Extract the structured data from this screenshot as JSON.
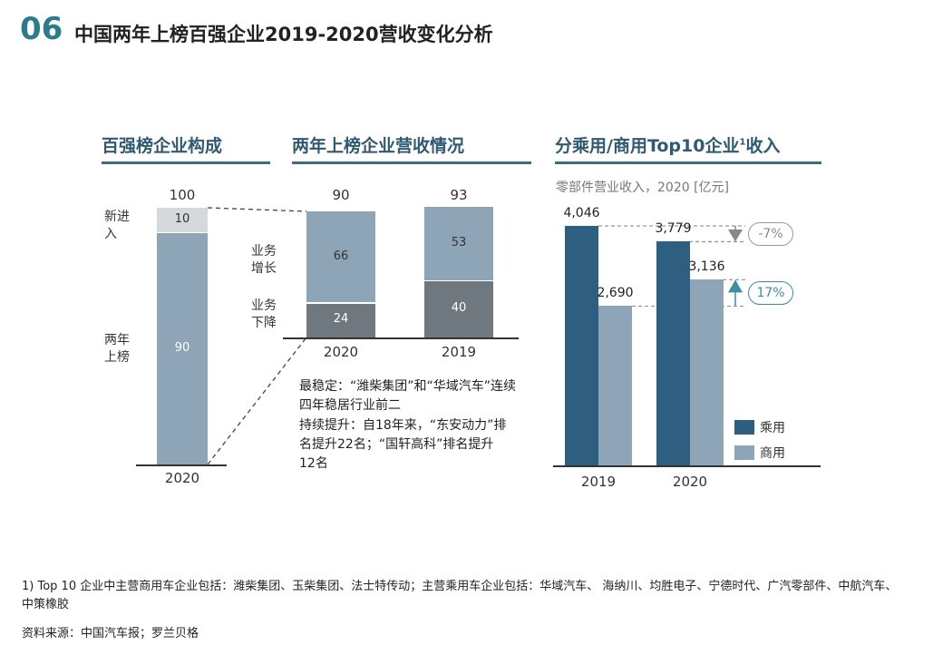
{
  "header": {
    "number": "06",
    "title": "中国两年上榜百强企业2019-2020营收变化分析"
  },
  "colors": {
    "dark_blue": "#2f5f80",
    "light_blue": "#8ea5b7",
    "gray": "#6e787e",
    "light_gray": "#d6d9db",
    "teal": "#3a8fa0"
  },
  "chart_data": [
    {
      "type": "bar",
      "title": "百强榜企业构成",
      "categories": [
        "2020"
      ],
      "series": [
        {
          "name": "两年上榜",
          "values": [
            90
          ]
        },
        {
          "name": "新进入",
          "values": [
            10
          ]
        }
      ],
      "total_labels": [
        "100"
      ],
      "segment_labels": [
        "两年上榜",
        "新进入"
      ],
      "ylim": [
        0,
        100
      ]
    },
    {
      "type": "bar",
      "title": "两年上榜企业营收情况",
      "categories": [
        "2020",
        "2019"
      ],
      "series": [
        {
          "name": "业务下降",
          "values": [
            24,
            40
          ]
        },
        {
          "name": "业务增长",
          "values": [
            66,
            53
          ]
        }
      ],
      "totals": [
        90,
        93
      ],
      "segment_labels": [
        "业务增长",
        "业务下降"
      ],
      "notes": [
        "最稳定：“潍柴集团”和“华域汽车”连续四年稳居行业前二",
        "持续提升：自18年来，“东安动力”排名提升22名；“国轩高科”排名提升12名"
      ]
    },
    {
      "type": "bar",
      "title": "分乘用/商用Top10企业",
      "title_sup": "1",
      "title_suffix": "收入",
      "subtitle": "零部件营业收入，2020 [亿元]",
      "categories": [
        "2019",
        "2020"
      ],
      "series": [
        {
          "name": "乘用",
          "values": [
            4046,
            3779
          ],
          "labels": [
            "4,046",
            "3,779"
          ]
        },
        {
          "name": "商用",
          "values": [
            2690,
            3136
          ],
          "labels": [
            "2,690",
            "3,136"
          ]
        }
      ],
      "changes": [
        {
          "series": "乘用",
          "label": "-7%",
          "direction": "down"
        },
        {
          "series": "商用",
          "label": "17%",
          "direction": "up"
        }
      ]
    }
  ],
  "footer": {
    "footnote": "1) Top 10 企业中主营商用车企业包括：潍柴集团、玉柴集团、法士特传动；主营乘用车企业包括：华域汽车、 海纳川、均胜电子、宁德时代、广汽零部件、中航汽车、中策橡胶",
    "source": "资料来源：中国汽车报；罗兰贝格"
  }
}
